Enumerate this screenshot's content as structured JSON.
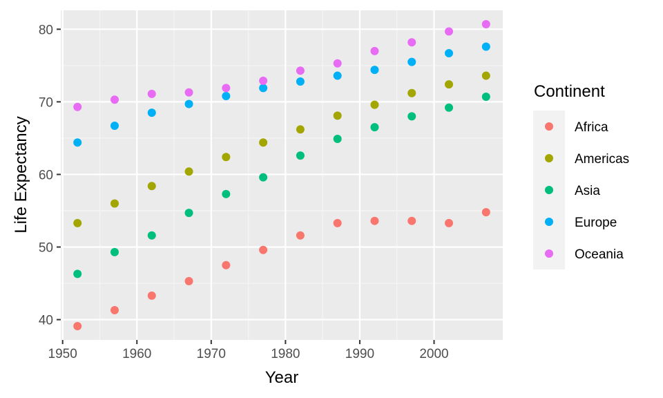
{
  "chart_data": {
    "type": "scatter",
    "title": "",
    "xlabel": "Year",
    "ylabel": "Life Expectancy",
    "xlim": [
      1949.75,
      2009.25
    ],
    "ylim": [
      37.2,
      82.6
    ],
    "x_ticks": [
      1950,
      1960,
      1970,
      1980,
      1990,
      2000
    ],
    "y_ticks": [
      40,
      50,
      60,
      70,
      80
    ],
    "grid": true,
    "legend": {
      "title": "Continent",
      "position": "right"
    },
    "x": [
      1952,
      1957,
      1962,
      1967,
      1972,
      1977,
      1982,
      1987,
      1992,
      1997,
      2002,
      2007
    ],
    "series": [
      {
        "name": "Africa",
        "color": "#F8766D",
        "values": [
          39.1,
          41.3,
          43.3,
          45.3,
          47.5,
          49.6,
          51.6,
          53.3,
          53.6,
          53.6,
          53.3,
          54.8
        ]
      },
      {
        "name": "Americas",
        "color": "#A3A500",
        "values": [
          53.3,
          56.0,
          58.4,
          60.4,
          62.4,
          64.4,
          66.2,
          68.1,
          69.6,
          71.2,
          72.4,
          73.6
        ]
      },
      {
        "name": "Asia",
        "color": "#00BF7D",
        "values": [
          46.3,
          49.3,
          51.6,
          54.7,
          57.3,
          59.6,
          62.6,
          64.9,
          66.5,
          68.0,
          69.2,
          70.7
        ]
      },
      {
        "name": "Europe",
        "color": "#00B0F6",
        "values": [
          64.4,
          66.7,
          68.5,
          69.7,
          70.8,
          71.9,
          72.8,
          73.6,
          74.4,
          75.5,
          76.7,
          77.6
        ]
      },
      {
        "name": "Oceania",
        "color": "#E76BF3",
        "values": [
          69.3,
          70.3,
          71.1,
          71.3,
          71.9,
          72.9,
          74.3,
          75.3,
          77.0,
          78.2,
          79.7,
          80.7
        ]
      }
    ]
  }
}
